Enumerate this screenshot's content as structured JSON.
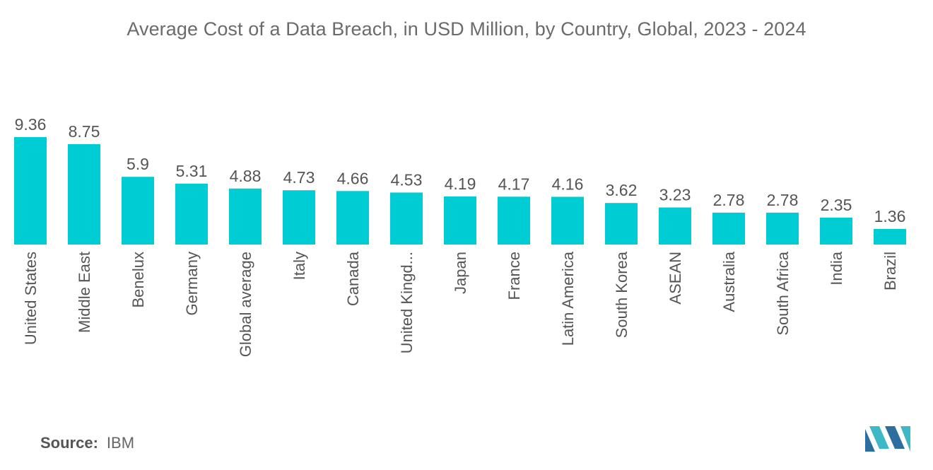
{
  "title": "Average Cost of a Data Breach, in USD Million, by Country, Global, 2023 - 2024",
  "source": {
    "label": "Source:",
    "value": "IBM"
  },
  "colors": {
    "bar": "#00CCD3",
    "label": "#555555",
    "logo_dark": "#2C6E9E",
    "logo_light": "#3FB8C6"
  },
  "logo_icon": "mordor-intelligence-logo-icon",
  "chart_data": {
    "type": "bar",
    "title": "Average Cost of a Data Breach, in USD Million, by Country, Global, 2023 - 2024",
    "xlabel": "",
    "ylabel": "",
    "ylim": [
      0,
      9.36
    ],
    "grid": false,
    "legend": "none",
    "categories": [
      "United States",
      "Middle East",
      "Benelux",
      "Germany",
      "Global average",
      "Italy",
      "Canada",
      "United Kingd...",
      "Japan",
      "France",
      "Latin America",
      "South Korea",
      "ASEAN",
      "Australia",
      "South Africa",
      "India",
      "Brazil"
    ],
    "values": [
      9.36,
      8.75,
      5.9,
      5.31,
      4.88,
      4.73,
      4.66,
      4.53,
      4.19,
      4.17,
      4.16,
      3.62,
      3.23,
      2.78,
      2.78,
      2.35,
      1.36
    ],
    "value_labels": [
      "9.36",
      "8.75",
      "5.9",
      "5.31",
      "4.88",
      "4.73",
      "4.66",
      "4.53",
      "4.19",
      "4.17",
      "4.16",
      "3.62",
      "3.23",
      "2.78",
      "2.78",
      "2.35",
      "1.36"
    ]
  }
}
